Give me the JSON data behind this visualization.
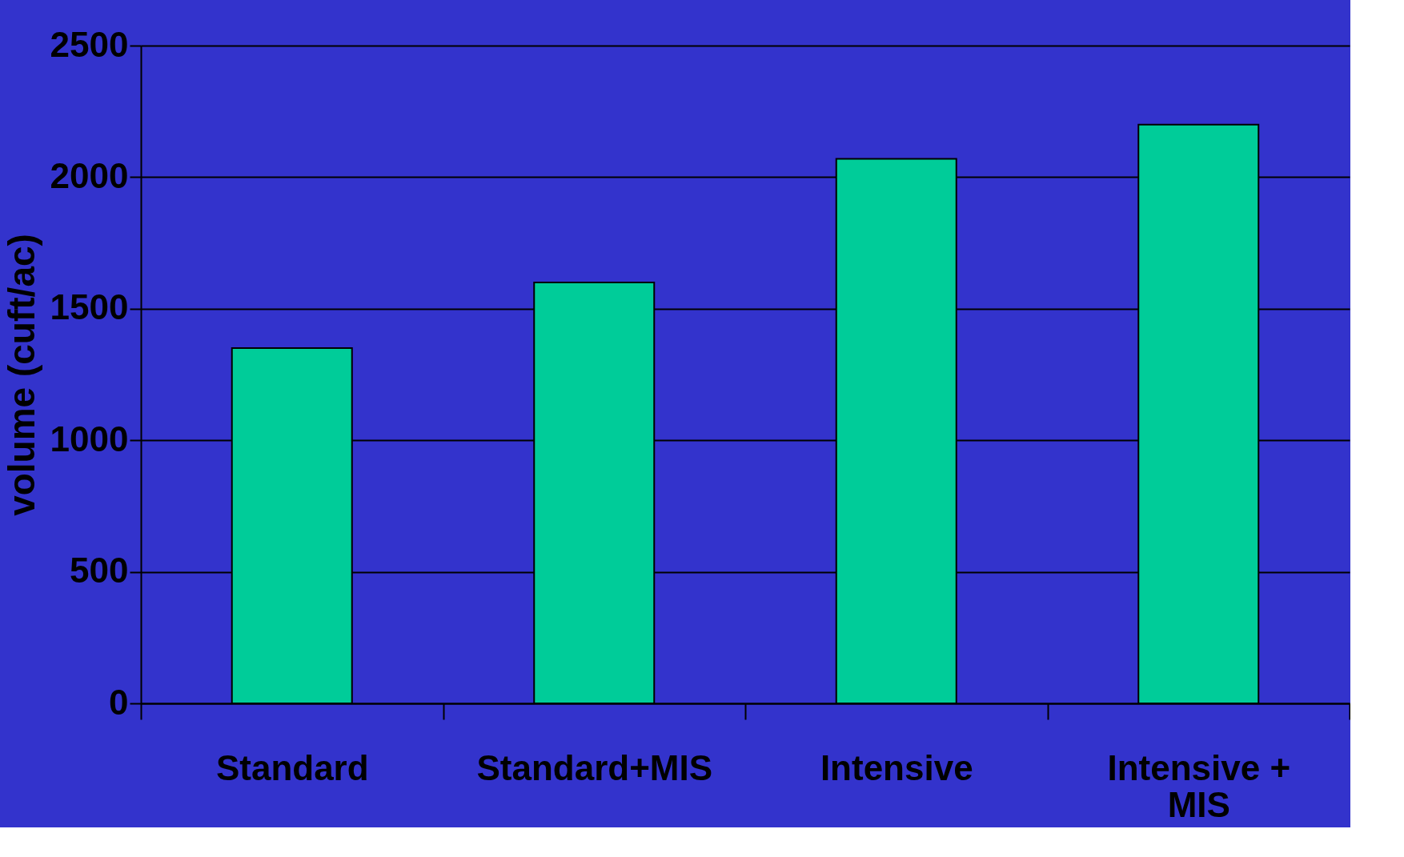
{
  "chart_data": {
    "type": "bar",
    "ylabel": "volume (cuft/ac)",
    "categories": [
      "Standard",
      "Standard+MIS",
      "Intensive",
      "Intensive + MIS"
    ],
    "values": [
      1350,
      1600,
      2070,
      2200
    ],
    "color": "#00cc99",
    "ylim": [
      0,
      2500
    ],
    "yticks": [
      0,
      500,
      1000,
      1500,
      2000,
      2500
    ],
    "grid": "y"
  }
}
